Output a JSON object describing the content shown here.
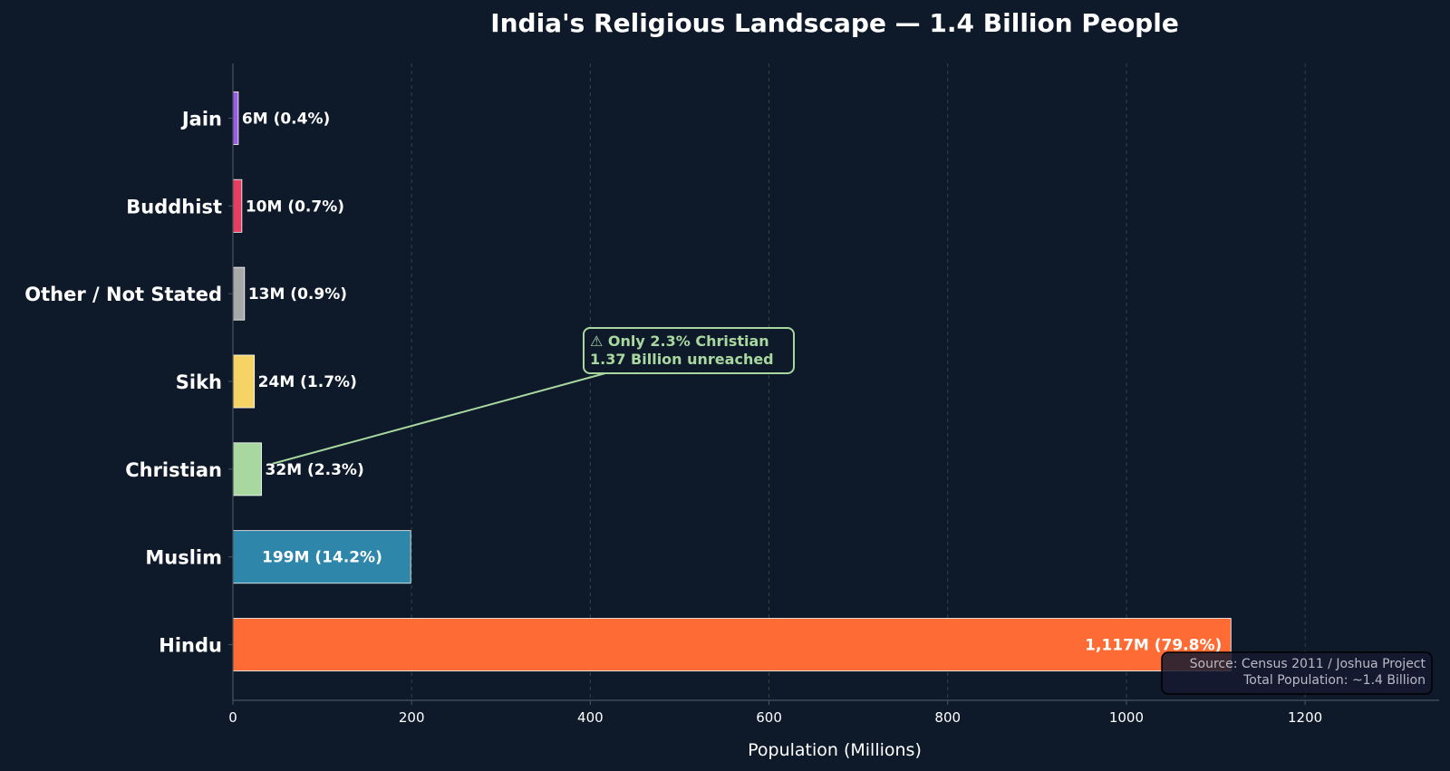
{
  "chart_data": {
    "type": "bar",
    "orientation": "horizontal",
    "title": "India's Religious Landscape — 1.4 Billion People",
    "xlabel": "Population (Millions)",
    "ylabel": "",
    "xlim": [
      0,
      1350
    ],
    "xticks": [
      0,
      200,
      400,
      600,
      800,
      1000,
      1200
    ],
    "grid": "vertical dashed",
    "categories": [
      "Hindu",
      "Muslim",
      "Christian",
      "Sikh",
      "Other / Not Stated",
      "Buddhist",
      "Jain"
    ],
    "values": [
      1117,
      199,
      32,
      24,
      13,
      10,
      6
    ],
    "data_labels": [
      "1,117M  (79.8%)",
      "199M  (14.2%)",
      "32M  (2.3%)",
      "24M  (1.7%)",
      "13M  (0.9%)",
      "10M  (0.7%)",
      "6M  (0.4%)"
    ],
    "colors": [
      "#ff6b35",
      "#2e86ab",
      "#a8d8a0",
      "#f6d365",
      "#a8a8a8",
      "#e63e62",
      "#9b5de5"
    ],
    "annotation": {
      "lines": [
        "⚠ Only 2.3% Christian",
        "1.37 Billion unreached"
      ],
      "target_category": "Christian",
      "color": "#a8d8a0"
    },
    "source_box": {
      "lines": [
        "Source: Census 2011 / Joshua Project",
        "Total Population: ~1.4 Billion"
      ]
    }
  },
  "colors": {
    "background": "#0e1a2a",
    "text": "#ffffff",
    "axis": "#4a5560",
    "grid": "#2a4a3a"
  }
}
